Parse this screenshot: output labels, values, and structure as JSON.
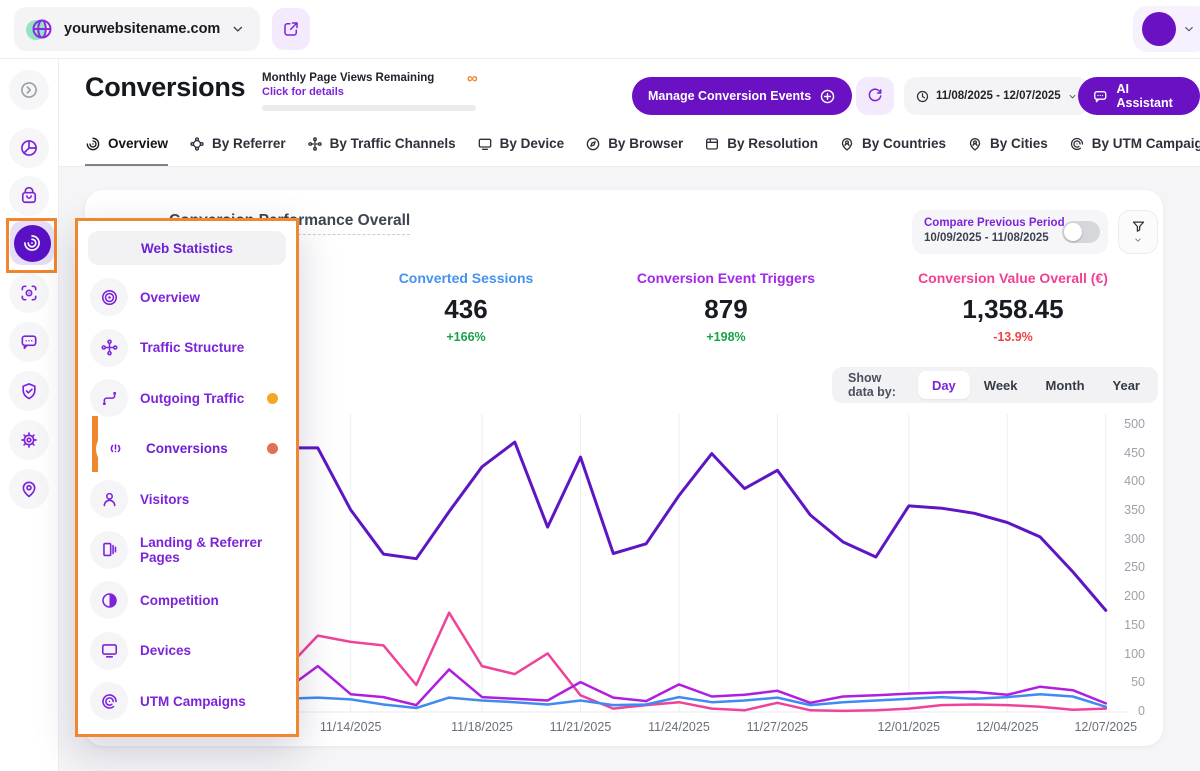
{
  "topbar": {
    "website_name": "yourwebsitename.com",
    "website_icon": "globe-icon",
    "website_chevron_icon": "chevron-down-icon",
    "open_site_icon": "external-link-icon",
    "account_avatar": "avatar",
    "account_chevron_icon": "chevron-down-icon"
  },
  "sidebar": {
    "items": [
      {
        "name": "collapse",
        "icon": "arrow-circle-icon",
        "muted": true
      },
      {
        "name": "analytics",
        "icon": "pie-chart-icon"
      },
      {
        "name": "store",
        "icon": "shopping-bag-icon"
      },
      {
        "name": "web-statistics",
        "icon": "radar-icon",
        "selected": true,
        "annotated": true
      },
      {
        "name": "tracking",
        "icon": "scan-icon"
      },
      {
        "name": "feedback",
        "icon": "chat-bubble-icon"
      },
      {
        "name": "security",
        "icon": "shield-check-icon"
      },
      {
        "name": "settings",
        "icon": "gear-icon"
      },
      {
        "name": "locations",
        "icon": "map-pin-icon"
      }
    ]
  },
  "header": {
    "title": "Conversions",
    "page_views": {
      "label": "Monthly Page Views Remaining",
      "link": "Click for details",
      "infinity": "∞"
    },
    "manage_button": "Manage Conversion Events",
    "date_range": "11/08/2025 - 12/07/2025",
    "ai_button": "AI Assistant"
  },
  "tabs": [
    {
      "label": "Overview",
      "icon": "radar-icon",
      "active": true
    },
    {
      "label": "By Referrer",
      "icon": "knot-icon"
    },
    {
      "label": "By Traffic Channels",
      "icon": "network-icon"
    },
    {
      "label": "By Device",
      "icon": "monitor-icon"
    },
    {
      "label": "By Browser",
      "icon": "compass-icon"
    },
    {
      "label": "By Resolution",
      "icon": "frame-icon"
    },
    {
      "label": "By Countries",
      "icon": "pin-person-icon"
    },
    {
      "label": "By Cities",
      "icon": "pin-person-icon"
    },
    {
      "label": "By UTM Campaign",
      "icon": "spiral-icon"
    }
  ],
  "menu": {
    "title": "Web Statistics",
    "items": [
      {
        "label": "Overview",
        "icon": "target-icon"
      },
      {
        "label": "Traffic Structure",
        "icon": "network-icon"
      },
      {
        "label": "Outgoing Traffic",
        "icon": "route-icon",
        "dot": "#F5A623"
      },
      {
        "label": "Conversions",
        "icon": "broadcast-icon",
        "dot": "#DF7155",
        "active": true,
        "annotated": true
      },
      {
        "label": "Visitors",
        "icon": "person-icon"
      },
      {
        "label": "Landing & Referrer Pages",
        "icon": "pages-icon"
      },
      {
        "label": "Competition",
        "icon": "half-circle-icon"
      },
      {
        "label": "Devices",
        "icon": "monitor-icon"
      },
      {
        "label": "UTM Campaigns",
        "icon": "spiral-icon"
      }
    ]
  },
  "card": {
    "title": "Conversion Performance Overall",
    "compare": {
      "label": "Compare Previous Period",
      "range": "10/09/2025 - 11/08/2025",
      "toggle_on": false
    },
    "stats": [
      {
        "label": "Converted Sessions",
        "value": "436",
        "delta": "+166%",
        "label_color": "#4692F0",
        "delta_color": "#16A34A"
      },
      {
        "label": "Conversion Event Triggers",
        "value": "879",
        "delta": "+198%",
        "label_color": "#A228EA",
        "delta_color": "#16A34A"
      },
      {
        "label": "Conversion Value Overall (€)",
        "value": "1,358.45",
        "delta": "-13.9%",
        "label_color": "#F23F92",
        "delta_color": "#EF4444"
      }
    ],
    "show_data_by": {
      "label": "Show data by:",
      "options": [
        "Day",
        "Week",
        "Month",
        "Year"
      ],
      "active": "Day"
    }
  },
  "chart_data": {
    "type": "line",
    "x": [
      "11/12/2025",
      "11/13/2025",
      "11/14/2025",
      "11/15/2025",
      "11/16/2025",
      "11/17/2025",
      "11/18/2025",
      "11/19/2025",
      "11/20/2025",
      "11/21/2025",
      "11/22/2025",
      "11/23/2025",
      "11/24/2025",
      "11/25/2025",
      "11/26/2025",
      "11/27/2025",
      "11/28/2025",
      "11/29/2025",
      "11/30/2025",
      "12/01/2025",
      "12/02/2025",
      "12/03/2025",
      "12/04/2025",
      "12/05/2025",
      "12/06/2025",
      "12/07/2025"
    ],
    "series": [
      {
        "name": "line-dark-purple",
        "color": "#5E16C4",
        "values": [
          460,
          460,
          352,
          275,
          267,
          349,
          427,
          470,
          322,
          444,
          276,
          293,
          377,
          450,
          389,
          421,
          343,
          296,
          270,
          359,
          355,
          346,
          330,
          305,
          244,
          177
        ]
      },
      {
        "name": "line-magenta",
        "color": "#B01FE0",
        "values": [
          38,
          80,
          31,
          26,
          12,
          74,
          26,
          23,
          20,
          52,
          25,
          19,
          48,
          27,
          30,
          37,
          16,
          27,
          29,
          32,
          34,
          35,
          30,
          44,
          38,
          15
        ]
      },
      {
        "name": "line-pink",
        "color": "#EE4397",
        "values": [
          73,
          133,
          122,
          116,
          47,
          173,
          80,
          66,
          102,
          29,
          6,
          12,
          17,
          6,
          3,
          16,
          3,
          2,
          3,
          6,
          12,
          13,
          12,
          9,
          4,
          6
        ]
      },
      {
        "name": "line-blue",
        "color": "#3F8BF2",
        "values": [
          23,
          25,
          22,
          13,
          7,
          25,
          20,
          17,
          13,
          20,
          12,
          13,
          26,
          17,
          20,
          25,
          12,
          17,
          20,
          23,
          26,
          23,
          26,
          31,
          27,
          9
        ]
      }
    ],
    "x_ticks": [
      {
        "label": "11/14/2025",
        "day": 2
      },
      {
        "label": "11/18/2025",
        "day": 6
      },
      {
        "label": "11/21/2025",
        "day": 9
      },
      {
        "label": "11/24/2025",
        "day": 12
      },
      {
        "label": "11/27/2025",
        "day": 15
      },
      {
        "label": "12/01/2025",
        "day": 19
      },
      {
        "label": "12/04/2025",
        "day": 22
      },
      {
        "label": "12/07/2025",
        "day": 25
      }
    ],
    "y_ticks": [
      0,
      50,
      100,
      150,
      200,
      250,
      300,
      350,
      400,
      450,
      500
    ],
    "ylim": [
      0,
      500
    ],
    "grid": "vertical",
    "legend": "none"
  },
  "annotations": {
    "color": "#F0862E"
  }
}
